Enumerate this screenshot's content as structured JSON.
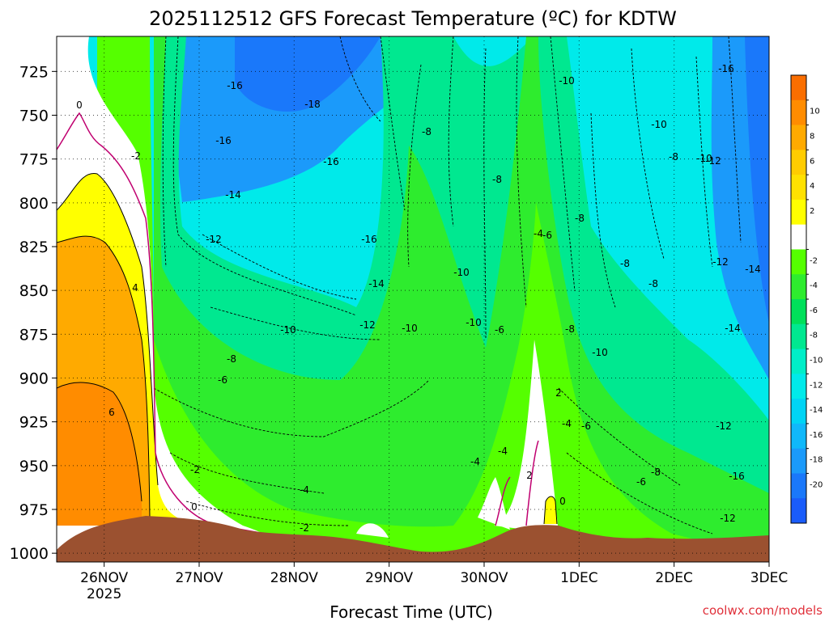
{
  "chart_data": {
    "type": "heatmap",
    "title": "2025112512 GFS Forecast Temperature (ºC) for KDTW",
    "xlabel": "Forecast Time (UTC)",
    "ylabel": "",
    "credit": "coolwx.com/models",
    "grid": true,
    "y_axis": {
      "scale": "pressure",
      "inverted": true,
      "ylim": [
        1005,
        705
      ],
      "ticks": [
        "725",
        "750",
        "775",
        "800",
        "825",
        "850",
        "875",
        "900",
        "925",
        "950",
        "975",
        "1000"
      ]
    },
    "x_axis": {
      "xlim": [
        "2025-11-25 12Z",
        "2025-12-03 00Z"
      ],
      "ticks": [
        {
          "label": "26NOV",
          "sub": "2025"
        },
        {
          "label": "27NOV",
          "sub": ""
        },
        {
          "label": "28NOV",
          "sub": ""
        },
        {
          "label": "29NOV",
          "sub": ""
        },
        {
          "label": "30NOV",
          "sub": ""
        },
        {
          "label": "1DEC",
          "sub": ""
        },
        {
          "label": "2DEC",
          "sub": ""
        },
        {
          "label": "3DEC",
          "sub": ""
        }
      ]
    },
    "colorbar": {
      "labels": [
        "10",
        "8",
        "6",
        "4",
        "2",
        "-2",
        "-4",
        "-6",
        "-8",
        "-10",
        "-12",
        "-14",
        "-16",
        "-18",
        "-20"
      ],
      "colors": [
        "#fa6e00",
        "#ff8c00",
        "#ffaa00",
        "#ffcc00",
        "#ffe100",
        "#ffff00",
        "#ffffff",
        "#55ff00",
        "#2eec2e",
        "#00e05a",
        "#00e890",
        "#00eec8",
        "#00eaea",
        "#00d4f5",
        "#10b8fa",
        "#1b9afa",
        "#1a78fa",
        "#1a5cfa"
      ]
    },
    "terrain_color": "#9b5130",
    "contour_labels": [
      "0",
      "-2",
      "4",
      "6",
      "-2",
      "0",
      "-2",
      "-16",
      "-18",
      "-16",
      "-16",
      "-14",
      "-12",
      "-10",
      "-8",
      "-6",
      "-4",
      "-16",
      "-14",
      "-12",
      "-10",
      "-8",
      "-10",
      "-10",
      "-8",
      "-6",
      "-4",
      "-8",
      "-8",
      "-6",
      "-4",
      "-4",
      "2",
      "-6",
      "-4",
      "2",
      "0",
      "-10",
      "-8",
      "-8",
      "-10",
      "-10",
      "-12",
      "-8",
      "-6",
      "-12",
      "-14",
      "-16",
      "-12",
      "-14",
      "-16",
      "-12",
      "-10",
      "-8"
    ]
  }
}
